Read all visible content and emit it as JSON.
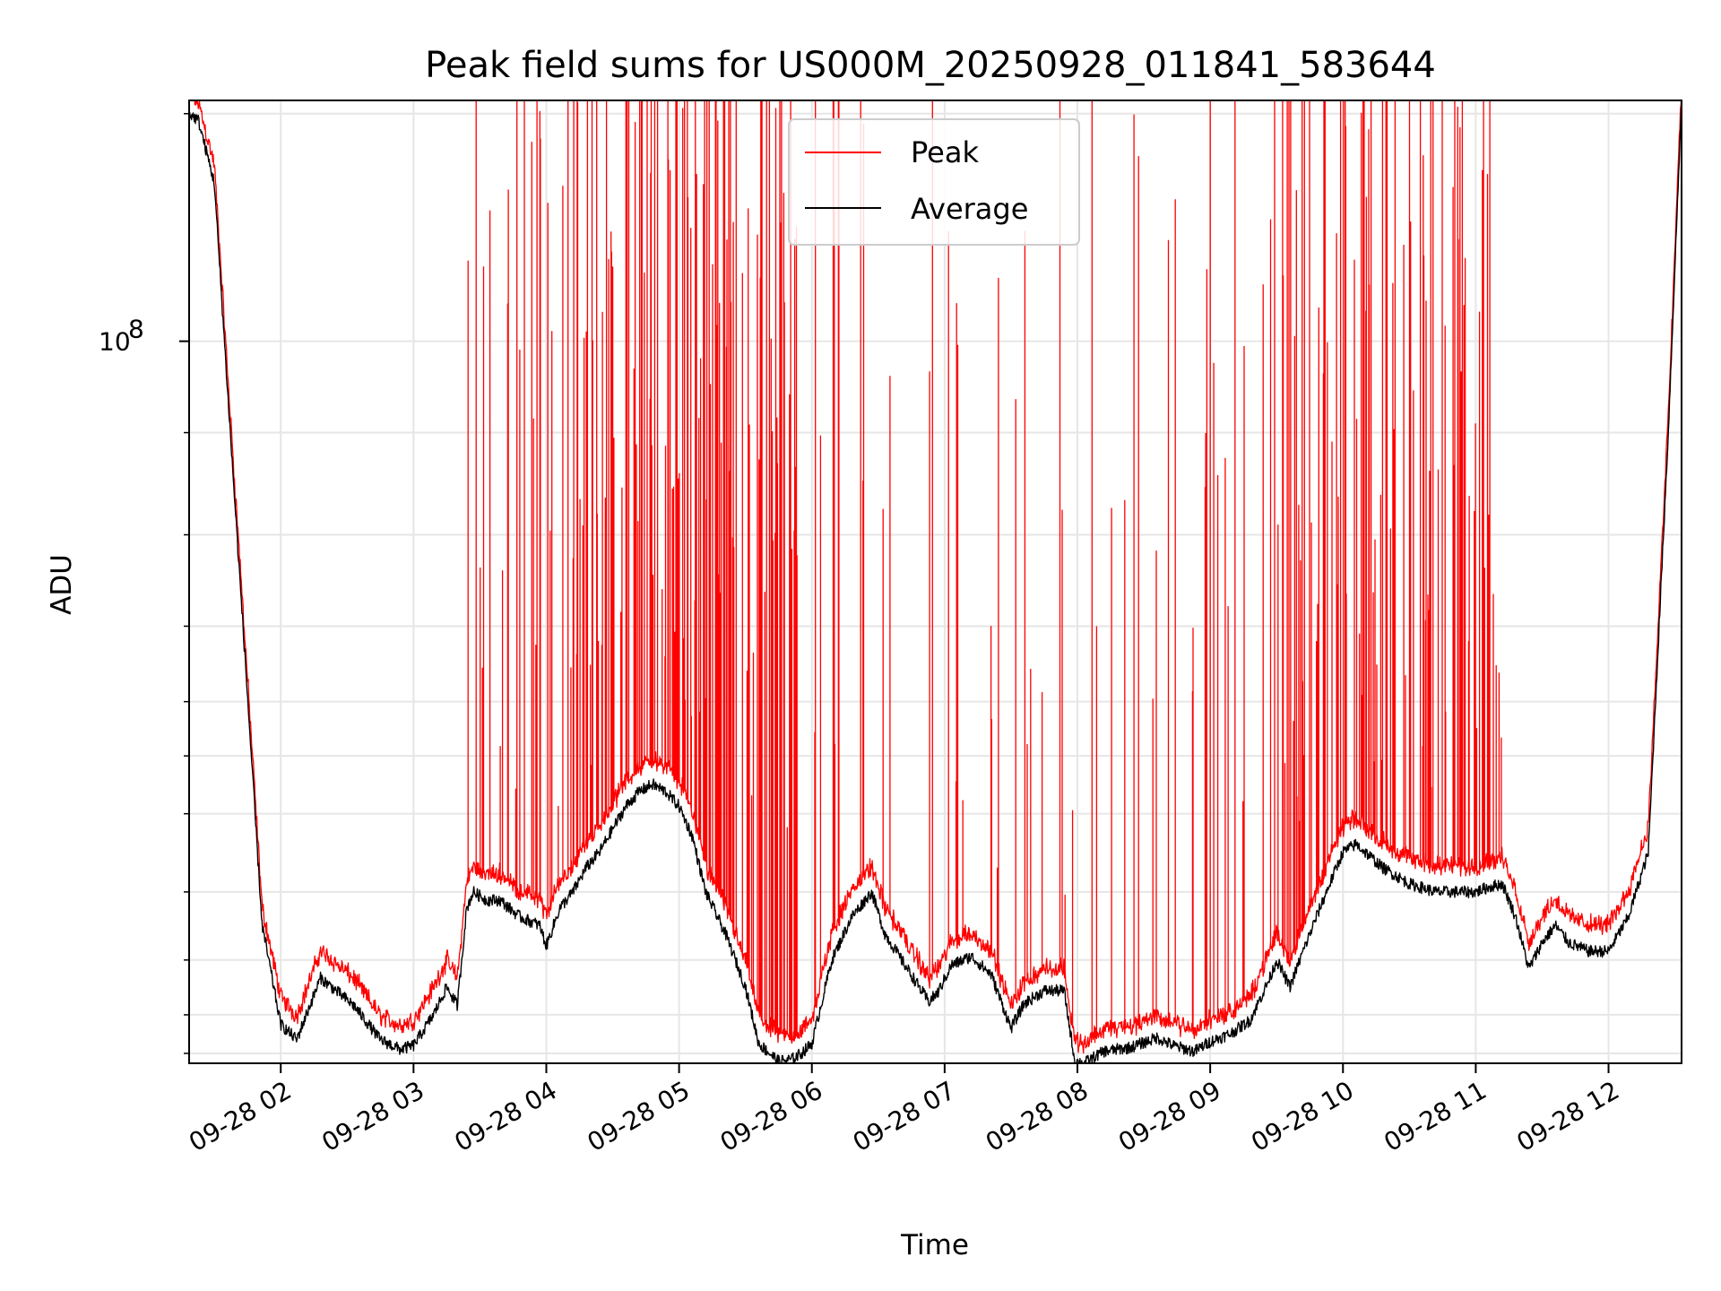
{
  "chart_data": {
    "type": "line",
    "title": "Peak field sums for US000M_20250928_011841_583644",
    "xlabel": "Time",
    "ylabel": "ADU",
    "y_scale": "log",
    "ylim": [
      43500000,
      132000000
    ],
    "xlim_hours": [
      1.31,
      12.55
    ],
    "y_major_tick": {
      "value": 100000000,
      "label_base": "10",
      "label_exp": "8"
    },
    "y_minor_ticks": [
      44000000,
      46000000,
      49000000,
      53000000,
      58000000,
      62000000,
      66000000,
      72000000,
      80000000,
      90000000,
      130000000
    ],
    "x_ticks": [
      {
        "hour": 2,
        "label": "09-28 02"
      },
      {
        "hour": 3,
        "label": "09-28 03"
      },
      {
        "hour": 4,
        "label": "09-28 04"
      },
      {
        "hour": 5,
        "label": "09-28 05"
      },
      {
        "hour": 6,
        "label": "09-28 06"
      },
      {
        "hour": 7,
        "label": "09-28 07"
      },
      {
        "hour": 8,
        "label": "09-28 08"
      },
      {
        "hour": 9,
        "label": "09-28 09"
      },
      {
        "hour": 10,
        "label": "09-28 10"
      },
      {
        "hour": 11,
        "label": "09-28 11"
      },
      {
        "hour": 12,
        "label": "09-28 12"
      }
    ],
    "grid": true,
    "legend_position": "top-center",
    "series": [
      {
        "name": "Peak",
        "color": "#ff0000",
        "baseline_offset": 0.012,
        "spiky_intervals": [
          [
            4.2,
            5.9,
            0.35
          ],
          [
            9.5,
            11.2,
            0.3
          ],
          [
            3.4,
            4.2,
            0.12
          ],
          [
            6.0,
            7.0,
            0.06
          ],
          [
            7.0,
            8.0,
            0.05
          ],
          [
            8.0,
            9.5,
            0.05
          ]
        ],
        "x": [
          1.31,
          1.38,
          1.5,
          1.62,
          1.74,
          1.86,
          2.0,
          2.12,
          2.3,
          2.55,
          2.75,
          2.9,
          3.0,
          3.15,
          3.25,
          3.33,
          3.4,
          3.45,
          3.55,
          3.65,
          3.8,
          3.95,
          4.0,
          4.1,
          4.2,
          4.3,
          4.4,
          4.5,
          4.6,
          4.7,
          4.8,
          4.9,
          5.0,
          5.1,
          5.2,
          5.35,
          5.5,
          5.6,
          5.75,
          5.85,
          5.92,
          6.0,
          6.15,
          6.3,
          6.45,
          6.55,
          6.72,
          6.88,
          6.95,
          7.05,
          7.2,
          7.35,
          7.5,
          7.6,
          7.75,
          7.9,
          7.98,
          8.05,
          8.2,
          8.4,
          8.6,
          8.72,
          8.88,
          9.0,
          9.15,
          9.3,
          9.45,
          9.5,
          9.6,
          9.7,
          9.8,
          9.9,
          10.0,
          10.1,
          10.3,
          10.5,
          10.7,
          10.9,
          11.0,
          11.1,
          11.2,
          11.3,
          11.4,
          11.5,
          11.6,
          11.7,
          11.85,
          12.0,
          12.15,
          12.3,
          12.45,
          12.55
        ],
        "values": [
          130000000,
          129000000,
          120000000,
          90000000,
          68000000,
          51000000,
          46000000,
          45000000,
          48500000,
          47000000,
          45000000,
          44500000,
          44800000,
          46500000,
          48000000,
          47000000,
          52500000,
          53500000,
          53000000,
          53000000,
          52000000,
          51500000,
          50500000,
          52500000,
          53500000,
          55000000,
          56000000,
          57500000,
          59000000,
          60000000,
          60500000,
          60000000,
          59000000,
          57000000,
          53500000,
          51000000,
          48000000,
          45000000,
          44000000,
          44000000,
          44200000,
          44800000,
          49500000,
          52000000,
          53500000,
          51000000,
          49000000,
          47000000,
          47500000,
          49000000,
          49500000,
          48500000,
          45500000,
          46800000,
          47500000,
          47500000,
          43800000,
          43600000,
          44300000,
          44500000,
          45000000,
          44600000,
          44300000,
          44800000,
          45200000,
          46000000,
          48500000,
          49500000,
          48000000,
          50000000,
          52000000,
          54000000,
          56000000,
          56500000,
          55000000,
          54000000,
          53500000,
          53500000,
          53500000,
          53800000,
          54000000,
          52000000,
          49000000,
          50500000,
          51500000,
          50500000,
          50000000,
          50000000,
          52000000,
          56000000,
          90000000,
          132000000
        ]
      },
      {
        "name": "Average",
        "color": "#000000",
        "baseline_offset": 0,
        "spiky_intervals": [],
        "x": [
          1.31,
          1.38,
          1.5,
          1.62,
          1.74,
          1.86,
          2.0,
          2.12,
          2.3,
          2.55,
          2.75,
          2.9,
          3.0,
          3.15,
          3.25,
          3.33,
          3.4,
          3.45,
          3.55,
          3.65,
          3.8,
          3.95,
          4.0,
          4.1,
          4.2,
          4.3,
          4.4,
          4.5,
          4.6,
          4.7,
          4.8,
          4.9,
          5.0,
          5.1,
          5.2,
          5.35,
          5.5,
          5.6,
          5.75,
          5.85,
          5.92,
          6.0,
          6.15,
          6.3,
          6.45,
          6.55,
          6.72,
          6.88,
          6.95,
          7.05,
          7.2,
          7.35,
          7.5,
          7.6,
          7.75,
          7.9,
          7.98,
          8.05,
          8.2,
          8.4,
          8.6,
          8.72,
          8.88,
          9.0,
          9.15,
          9.3,
          9.45,
          9.5,
          9.6,
          9.7,
          9.8,
          9.9,
          10.0,
          10.1,
          10.3,
          10.5,
          10.7,
          10.9,
          11.0,
          11.1,
          11.2,
          11.3,
          11.4,
          11.5,
          11.6,
          11.7,
          11.85,
          12.0,
          12.15,
          12.3,
          12.45,
          12.55
        ],
        "values": [
          130000000,
          129000000,
          120000000,
          90000000,
          68000000,
          51000000,
          45500000,
          44700000,
          48000000,
          46500000,
          44700000,
          44200000,
          44400000,
          46000000,
          47500000,
          46500000,
          52000000,
          53000000,
          52500000,
          52500000,
          51500000,
          51000000,
          49800000,
          52000000,
          53000000,
          54500000,
          55500000,
          57000000,
          58500000,
          59500000,
          60000000,
          59500000,
          58500000,
          56500000,
          53000000,
          50500000,
          47500000,
          44500000,
          43600000,
          43700000,
          44000000,
          44500000,
          49000000,
          51500000,
          53000000,
          50500000,
          48500000,
          46700000,
          47200000,
          48700000,
          49200000,
          48200000,
          45300000,
          46600000,
          47300000,
          47300000,
          43600000,
          43500000,
          44100000,
          44300000,
          44800000,
          44400000,
          44100000,
          44600000,
          45000000,
          45700000,
          48000000,
          49000000,
          47500000,
          49500000,
          51500000,
          53500000,
          55500000,
          56000000,
          54500000,
          53500000,
          53000000,
          53000000,
          53000000,
          53300000,
          53500000,
          51500000,
          48500000,
          50000000,
          51000000,
          50000000,
          49500000,
          49500000,
          51500000,
          55500000,
          90000000,
          132000000
        ]
      }
    ]
  }
}
